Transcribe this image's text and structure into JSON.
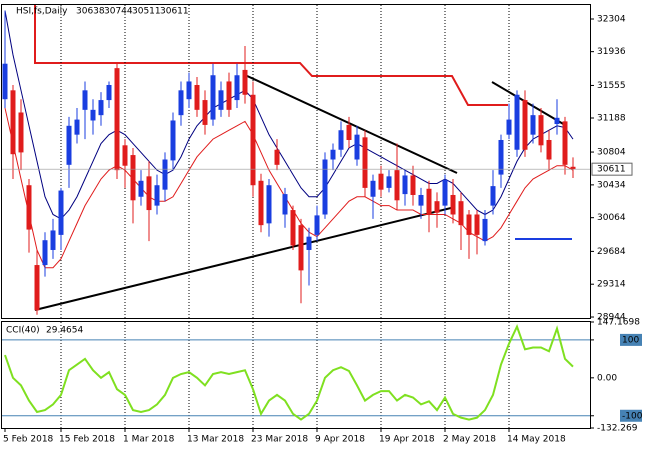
{
  "chart_data": [
    {
      "type": "candlestick",
      "title": "HSI,fs,Daily",
      "categories": [
        "5 Feb 2018",
        null,
        null,
        null,
        null,
        null,
        null,
        "15 Feb 2018",
        null,
        null,
        null,
        null,
        null,
        null,
        null,
        "1 Mar 2018",
        null,
        null,
        null,
        null,
        null,
        null,
        null,
        "13 Mar 2018",
        null,
        null,
        null,
        null,
        null,
        null,
        null,
        "23 Mar 2018",
        null,
        null,
        null,
        null,
        null,
        null,
        null,
        "9 Apr 2018",
        null,
        null,
        null,
        null,
        null,
        null,
        null,
        "19 Apr 2018",
        null,
        null,
        null,
        null,
        null,
        null,
        null,
        "2 May 2018",
        null,
        null,
        null,
        null,
        null,
        null,
        null,
        "14 May 2018",
        null,
        null,
        null,
        null,
        null,
        null,
        null,
        null
      ],
      "open": [
        31400,
        31500,
        31250,
        30430,
        29530,
        29530,
        29700,
        29870,
        30660,
        31000,
        31280,
        31160,
        31220,
        31390,
        31750,
        30880,
        30770,
        30300,
        30530,
        30200,
        30380,
        30710,
        31220,
        31400,
        31560,
        31390,
        31170,
        31280,
        31600,
        31390,
        31730,
        31450,
        30480,
        30000,
        30830,
        30100,
        30150,
        29980,
        29700,
        29870,
        30100,
        30720,
        30830,
        31110,
        30720,
        30970,
        30300,
        30560,
        30400,
        30600,
        30330,
        30540,
        30200,
        30390,
        30250,
        30200,
        30320,
        30250,
        30100,
        30100,
        29800,
        30200,
        30550,
        31000,
        30830,
        31390,
        31000,
        31220,
        30940,
        31120,
        31150,
        30638
      ],
      "high": [
        32400,
        31560,
        31400,
        30500,
        29700,
        29900,
        30050,
        30400,
        31200,
        31300,
        31600,
        31400,
        31480,
        31600,
        31800,
        30950,
        30850,
        30600,
        30700,
        30550,
        30800,
        31250,
        31600,
        31700,
        31650,
        31500,
        31800,
        31600,
        31700,
        31800,
        32000,
        31600,
        30560,
        30500,
        30950,
        30400,
        30200,
        30050,
        29950,
        30200,
        30800,
        30900,
        31150,
        31200,
        31100,
        31050,
        30550,
        30650,
        30600,
        30900,
        30600,
        30650,
        30400,
        30480,
        30350,
        30550,
        30500,
        30350,
        30150,
        30150,
        30150,
        30600,
        31000,
        31350,
        31500,
        31500,
        31350,
        31300,
        31050,
        31400,
        31200,
        30744
      ],
      "low": [
        31300,
        30500,
        30600,
        29670,
        28970,
        29400,
        29600,
        29700,
        30400,
        30900,
        30950,
        31000,
        31100,
        31300,
        30500,
        30400,
        30000,
        30200,
        29800,
        30100,
        30250,
        30600,
        31100,
        31300,
        31200,
        31000,
        31100,
        31200,
        31200,
        31300,
        31350,
        30300,
        29900,
        29850,
        30600,
        29950,
        29700,
        29100,
        29300,
        29800,
        30050,
        30600,
        30750,
        30850,
        30650,
        30300,
        30050,
        30300,
        30350,
        30150,
        30200,
        30200,
        30050,
        29900,
        29950,
        30100,
        30000,
        29700,
        29600,
        29650,
        29750,
        30100,
        30400,
        30950,
        30750,
        30750,
        30900,
        30800,
        30600,
        31000,
        30550,
        30511
      ],
      "close": [
        31800,
        30780,
        30800,
        29930,
        29020,
        29810,
        29920,
        30370,
        31100,
        31170,
        31500,
        31280,
        31390,
        31560,
        30600,
        30650,
        30260,
        30480,
        30150,
        30430,
        30720,
        31160,
        31500,
        31600,
        31280,
        31110,
        31670,
        31500,
        31280,
        31670,
        31450,
        30430,
        29980,
        30430,
        30660,
        30330,
        29750,
        29470,
        29850,
        30090,
        30720,
        30830,
        31050,
        30940,
        31000,
        30400,
        30480,
        30380,
        30530,
        30260,
        30540,
        30320,
        30320,
        30100,
        30120,
        30490,
        30100,
        29980,
        29870,
        29870,
        30050,
        30420,
        30940,
        31170,
        31450,
        30830,
        31220,
        30880,
        30720,
        31190,
        30660,
        30611
      ],
      "up_color": "#1a3ee0",
      "down_color": "#e01c1c",
      "lines": [
        {
          "color": "#000080",
          "values": [
            32400,
            31900,
            31500,
            31100,
            30700,
            30300,
            30100,
            30050,
            30150,
            30300,
            30500,
            30700,
            30900,
            31000,
            31050,
            31000,
            30900,
            30800,
            30700,
            30600,
            30550,
            30600,
            30750,
            30950,
            31100,
            31200,
            31300,
            31350,
            31400,
            31450,
            31500,
            31400,
            31200,
            31000,
            30850,
            30700,
            30550,
            30400,
            30300,
            30300,
            30400,
            30550,
            30700,
            30850,
            30900,
            30850,
            30800,
            30750,
            30700,
            30650,
            30600,
            30550,
            30500,
            30450,
            30450,
            30500,
            30450,
            30350,
            30250,
            30150,
            30100,
            30150,
            30300,
            30500,
            30700,
            30850,
            30950,
            31000,
            31050,
            31100,
            31080,
            30950
          ]
        },
        {
          "color": "#e01c1c",
          "values": [
            31300,
            30900,
            30500,
            30100,
            29700,
            29500,
            29500,
            29600,
            29800,
            30000,
            30200,
            30350,
            30500,
            30600,
            30650,
            30600,
            30500,
            30400,
            30300,
            30250,
            30250,
            30300,
            30450,
            30600,
            30750,
            30850,
            30950,
            31000,
            31050,
            31100,
            31150,
            31000,
            30800,
            30600,
            30450,
            30300,
            30150,
            30000,
            29900,
            29850,
            29950,
            30050,
            30150,
            30250,
            30300,
            30300,
            30250,
            30200,
            30200,
            30150,
            30150,
            30150,
            30100,
            30100,
            30100,
            30100,
            30050,
            30000,
            29900,
            29850,
            29800,
            29850,
            29950,
            30100,
            30250,
            30400,
            30500,
            30550,
            30600,
            30650,
            30650,
            30600
          ]
        }
      ],
      "ylim": [
        28933,
        32462
      ],
      "yticks": [
        32304,
        31936,
        31555,
        31188,
        30804,
        30434,
        30064,
        29684,
        29314,
        28944
      ]
    },
    {
      "type": "line",
      "title": "CCI(40)",
      "color": "#7fe020",
      "values": [
        60,
        0,
        -20,
        -60,
        -90,
        -85,
        -70,
        -45,
        20,
        35,
        50,
        20,
        0,
        15,
        -30,
        -45,
        -85,
        -90,
        -85,
        -70,
        -45,
        0,
        10,
        15,
        0,
        -20,
        10,
        15,
        10,
        15,
        20,
        -30,
        -95,
        -60,
        -45,
        -60,
        -95,
        -110,
        -95,
        -60,
        0,
        20,
        28,
        18,
        -20,
        -60,
        -45,
        -35,
        -35,
        -60,
        -45,
        -52,
        -70,
        -62,
        -85,
        -52,
        -95,
        -105,
        -110,
        -105,
        -85,
        -45,
        35,
        90,
        135,
        75,
        80,
        80,
        70,
        130,
        50,
        29.4654
      ],
      "ylim": [
        -132.269,
        147.1698
      ],
      "yticks": [
        147.1698,
        100,
        {
          "value": 0,
          "label": "0.00"
        },
        -100,
        -132.269
      ],
      "levels": [
        100,
        -100
      ],
      "level_color": "#4682b4"
    }
  ]
}
